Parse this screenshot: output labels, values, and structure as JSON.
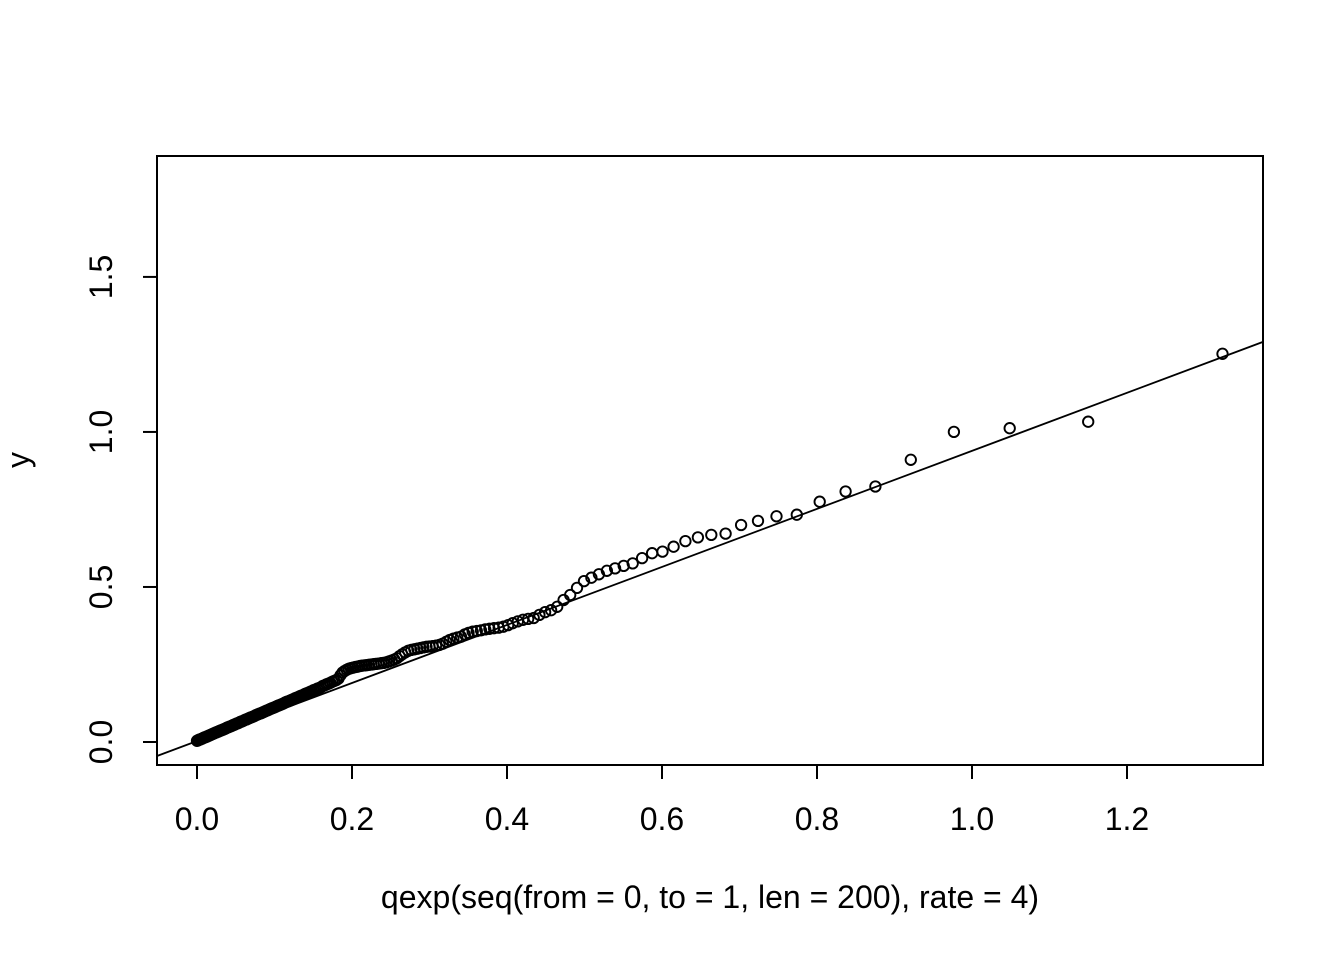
{
  "figure": {
    "background": "#ffffff",
    "foreground": "#000000"
  },
  "chart_data": {
    "type": "scatter",
    "title": "",
    "xlabel": "qexp(seq(from = 0, to = 1, len = 200), rate = 4)",
    "ylabel": "y",
    "marker": "open-circle",
    "grid": false,
    "legend": null,
    "xlim": [
      -0.0516,
      1.3755
    ],
    "ylim": [
      -0.0742,
      1.89
    ],
    "x_ticks": [
      0.0,
      0.2,
      0.4,
      0.6,
      0.8,
      1.0,
      1.2
    ],
    "x_tick_labels": [
      "0.0",
      "0.2",
      "0.4",
      "0.6",
      "0.8",
      "1.0",
      "1.2"
    ],
    "y_ticks": [
      0.0,
      0.5,
      1.0,
      1.5
    ],
    "y_tick_labels": [
      "0.0",
      "0.5",
      "1.0",
      "1.5"
    ],
    "n_points": 199,
    "reference_line": {
      "x1": -0.0516,
      "y1": -0.0452,
      "x2": 1.3755,
      "y2": 1.2905
    },
    "points": [
      [
        0.0,
        0.004
      ],
      [
        0.0013,
        0.005
      ],
      [
        0.0025,
        0.007
      ],
      [
        0.0038,
        0.008
      ],
      [
        0.0051,
        0.009
      ],
      [
        0.0064,
        0.011
      ],
      [
        0.0076,
        0.012
      ],
      [
        0.0089,
        0.014
      ],
      [
        0.0102,
        0.015
      ],
      [
        0.0116,
        0.016
      ],
      [
        0.0129,
        0.018
      ],
      [
        0.0142,
        0.019
      ],
      [
        0.0155,
        0.021
      ],
      [
        0.0169,
        0.022
      ],
      [
        0.0182,
        0.024
      ],
      [
        0.0196,
        0.025
      ],
      [
        0.021,
        0.027
      ],
      [
        0.0223,
        0.028
      ],
      [
        0.0237,
        0.03
      ],
      [
        0.0251,
        0.031
      ],
      [
        0.0265,
        0.033
      ],
      [
        0.0279,
        0.034
      ],
      [
        0.0294,
        0.036
      ],
      [
        0.0308,
        0.037
      ],
      [
        0.0323,
        0.039
      ],
      [
        0.0337,
        0.04
      ],
      [
        0.0351,
        0.042
      ],
      [
        0.0366,
        0.043
      ],
      [
        0.038,
        0.045
      ],
      [
        0.0394,
        0.047
      ],
      [
        0.0409,
        0.048
      ],
      [
        0.0424,
        0.05
      ],
      [
        0.0439,
        0.051
      ],
      [
        0.0454,
        0.053
      ],
      [
        0.047,
        0.055
      ],
      [
        0.0485,
        0.056
      ],
      [
        0.05,
        0.058
      ],
      [
        0.0515,
        0.06
      ],
      [
        0.0531,
        0.061
      ],
      [
        0.0546,
        0.063
      ],
      [
        0.0561,
        0.065
      ],
      [
        0.0577,
        0.066
      ],
      [
        0.0594,
        0.068
      ],
      [
        0.061,
        0.07
      ],
      [
        0.0626,
        0.072
      ],
      [
        0.0642,
        0.073
      ],
      [
        0.0658,
        0.075
      ],
      [
        0.0675,
        0.077
      ],
      [
        0.0691,
        0.079
      ],
      [
        0.0707,
        0.08
      ],
      [
        0.0723,
        0.082
      ],
      [
        0.0741,
        0.084
      ],
      [
        0.0758,
        0.086
      ],
      [
        0.0776,
        0.088
      ],
      [
        0.0793,
        0.09
      ],
      [
        0.081,
        0.092
      ],
      [
        0.0828,
        0.093
      ],
      [
        0.0845,
        0.095
      ],
      [
        0.0862,
        0.097
      ],
      [
        0.088,
        0.099
      ],
      [
        0.0897,
        0.101
      ],
      [
        0.0916,
        0.103
      ],
      [
        0.0934,
        0.105
      ],
      [
        0.0953,
        0.107
      ],
      [
        0.0972,
        0.109
      ],
      [
        0.099,
        0.111
      ],
      [
        0.1009,
        0.113
      ],
      [
        0.1028,
        0.115
      ],
      [
        0.1046,
        0.117
      ],
      [
        0.1065,
        0.119
      ],
      [
        0.1084,
        0.121
      ],
      [
        0.1104,
        0.123
      ],
      [
        0.1124,
        0.125
      ],
      [
        0.1144,
        0.128
      ],
      [
        0.1164,
        0.13
      ],
      [
        0.1185,
        0.132
      ],
      [
        0.1205,
        0.134
      ],
      [
        0.1225,
        0.136
      ],
      [
        0.1245,
        0.138
      ],
      [
        0.1265,
        0.141
      ],
      [
        0.1286,
        0.143
      ],
      [
        0.1308,
        0.145
      ],
      [
        0.1329,
        0.148
      ],
      [
        0.1351,
        0.15
      ],
      [
        0.1373,
        0.152
      ],
      [
        0.1395,
        0.155
      ],
      [
        0.1417,
        0.157
      ],
      [
        0.1439,
        0.159
      ],
      [
        0.1461,
        0.162
      ],
      [
        0.1483,
        0.164
      ],
      [
        0.1505,
        0.167
      ],
      [
        0.1529,
        0.169
      ],
      [
        0.1553,
        0.172
      ],
      [
        0.1577,
        0.174
      ],
      [
        0.1601,
        0.177
      ],
      [
        0.1625,
        0.181
      ],
      [
        0.1649,
        0.183
      ],
      [
        0.1673,
        0.186
      ],
      [
        0.1697,
        0.188
      ],
      [
        0.1721,
        0.191
      ],
      [
        0.1746,
        0.194
      ],
      [
        0.1772,
        0.197
      ],
      [
        0.1799,
        0.2
      ],
      [
        0.1825,
        0.204
      ],
      [
        0.1852,
        0.215
      ],
      [
        0.1879,
        0.224
      ],
      [
        0.1905,
        0.229
      ],
      [
        0.1932,
        0.233
      ],
      [
        0.1959,
        0.236
      ],
      [
        0.1985,
        0.238
      ],
      [
        0.2012,
        0.24
      ],
      [
        0.2041,
        0.242
      ],
      [
        0.2071,
        0.243
      ],
      [
        0.2101,
        0.245
      ],
      [
        0.2131,
        0.246
      ],
      [
        0.2161,
        0.247
      ],
      [
        0.219,
        0.248
      ],
      [
        0.222,
        0.249
      ],
      [
        0.225,
        0.25
      ],
      [
        0.228,
        0.251
      ],
      [
        0.231,
        0.252
      ],
      [
        0.2343,
        0.253
      ],
      [
        0.2377,
        0.254
      ],
      [
        0.2411,
        0.255
      ],
      [
        0.2445,
        0.257
      ],
      [
        0.2479,
        0.26
      ],
      [
        0.2513,
        0.263
      ],
      [
        0.2546,
        0.266
      ],
      [
        0.258,
        0.27
      ],
      [
        0.2614,
        0.277
      ],
      [
        0.2648,
        0.283
      ],
      [
        0.2687,
        0.289
      ],
      [
        0.2726,
        0.294
      ],
      [
        0.2765,
        0.297
      ],
      [
        0.2805,
        0.299
      ],
      [
        0.2844,
        0.301
      ],
      [
        0.2883,
        0.303
      ],
      [
        0.2922,
        0.305
      ],
      [
        0.2961,
        0.307
      ],
      [
        0.3,
        0.308
      ],
      [
        0.3039,
        0.309
      ],
      [
        0.3084,
        0.311
      ],
      [
        0.3128,
        0.313
      ],
      [
        0.3172,
        0.317
      ],
      [
        0.3217,
        0.323
      ],
      [
        0.3261,
        0.329
      ],
      [
        0.3309,
        0.333
      ],
      [
        0.3358,
        0.337
      ],
      [
        0.3407,
        0.34
      ],
      [
        0.3455,
        0.347
      ],
      [
        0.3504,
        0.352
      ],
      [
        0.3558,
        0.356
      ],
      [
        0.3611,
        0.358
      ],
      [
        0.3665,
        0.36
      ],
      [
        0.3719,
        0.363
      ],
      [
        0.3773,
        0.365
      ],
      [
        0.3833,
        0.367
      ],
      [
        0.3893,
        0.369
      ],
      [
        0.3954,
        0.372
      ],
      [
        0.4014,
        0.377
      ],
      [
        0.4074,
        0.383
      ],
      [
        0.414,
        0.389
      ],
      [
        0.4206,
        0.394
      ],
      [
        0.4274,
        0.397
      ],
      [
        0.4345,
        0.4
      ],
      [
        0.4418,
        0.41
      ],
      [
        0.4492,
        0.419
      ],
      [
        0.4569,
        0.425
      ],
      [
        0.4648,
        0.436
      ],
      [
        0.473,
        0.458
      ],
      [
        0.4815,
        0.474
      ],
      [
        0.4903,
        0.497
      ],
      [
        0.4994,
        0.519
      ],
      [
        0.5089,
        0.53
      ],
      [
        0.5186,
        0.541
      ],
      [
        0.5289,
        0.552
      ],
      [
        0.5395,
        0.56
      ],
      [
        0.5506,
        0.568
      ],
      [
        0.5622,
        0.576
      ],
      [
        0.5744,
        0.593
      ],
      [
        0.5872,
        0.609
      ],
      [
        0.6007,
        0.614
      ],
      [
        0.615,
        0.63
      ],
      [
        0.6302,
        0.648
      ],
      [
        0.6463,
        0.66
      ],
      [
        0.6636,
        0.668
      ],
      [
        0.6821,
        0.672
      ],
      [
        0.7021,
        0.7
      ],
      [
        0.7239,
        0.713
      ],
      [
        0.7477,
        0.728
      ],
      [
        0.774,
        0.733
      ],
      [
        0.8035,
        0.775
      ],
      [
        0.8369,
        0.808
      ],
      [
        0.8754,
        0.824
      ],
      [
        0.921,
        0.91
      ],
      [
        0.9767,
        1.0
      ],
      [
        1.0487,
        1.012
      ],
      [
        1.15,
        1.033
      ],
      [
        1.3233,
        1.252
      ]
    ]
  }
}
